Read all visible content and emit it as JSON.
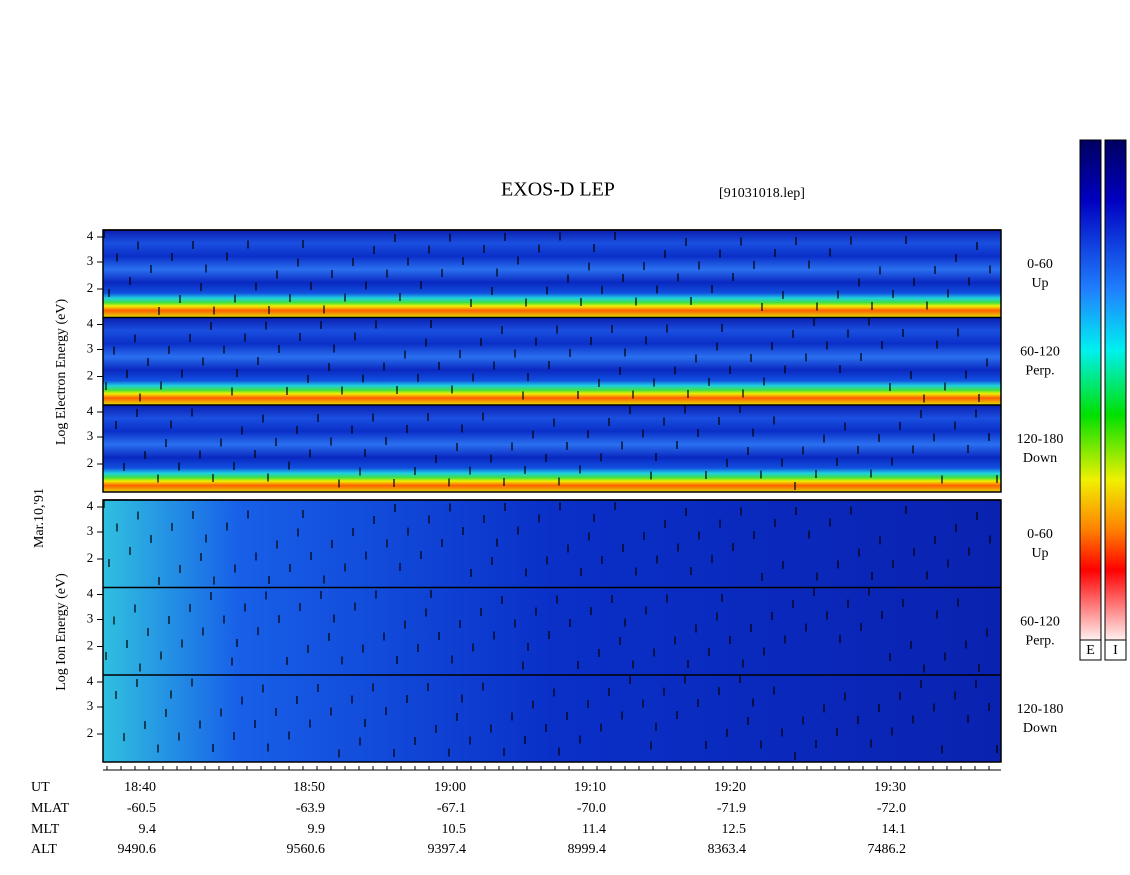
{
  "title": "EXOS-D LEP",
  "file": "[91031018.lep]",
  "date": "Mar.10,'91",
  "electron": {
    "axis_label": "Log  Electron  Energy (eV)",
    "panels": [
      {
        "range": "0-60",
        "dir": "Up"
      },
      {
        "range": "60-120",
        "dir": "Perp."
      },
      {
        "range": "120-180",
        "dir": "Down"
      }
    ]
  },
  "ion": {
    "axis_label": "Log  Ion  Energy (eV)",
    "panels": [
      {
        "range": "0-60",
        "dir": "Up"
      },
      {
        "range": "60-120",
        "dir": "Perp."
      },
      {
        "range": "120-180",
        "dir": "Down"
      }
    ]
  },
  "energy_ticks": [
    "4",
    "3",
    "2"
  ],
  "table": {
    "row_names": [
      "UT",
      "MLAT",
      "MLT",
      "ALT"
    ],
    "rows": [
      [
        "18:40",
        "18:50",
        "19:00",
        "19:10",
        "19:20",
        "19:30"
      ],
      [
        "-60.5",
        "-63.9",
        "-67.1",
        "-70.0",
        "-71.9",
        "-72.0"
      ],
      [
        "9.4",
        "9.9",
        "10.5",
        "11.4",
        "12.5",
        "14.1"
      ],
      [
        "9490.6",
        "9560.6",
        "9397.4",
        "8999.4",
        "8363.4",
        "7486.2"
      ]
    ]
  },
  "colorbars": [
    "E",
    "I"
  ]
}
